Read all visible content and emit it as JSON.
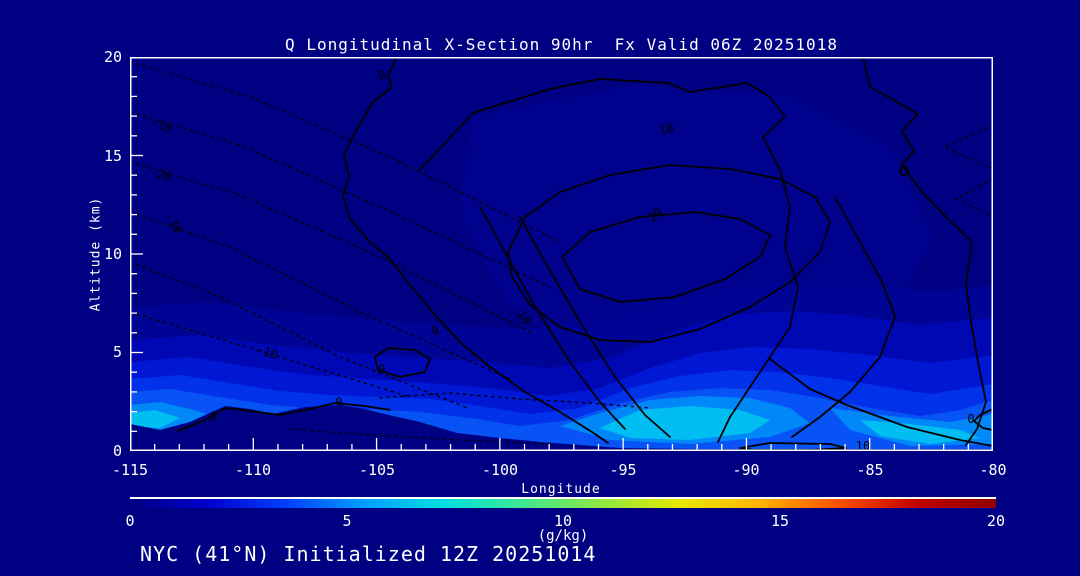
{
  "title": "Q Longitudinal X-Section 90hr  Fx Valid 06Z 20251018",
  "footer": "NYC (41°N) Initialized 12Z 20251014",
  "axes": {
    "y_label": "Altitude (km)",
    "y_ticks": [
      "20",
      "15",
      "10",
      "5",
      "0"
    ],
    "x_label": "Longitude",
    "x_ticks": [
      "-115",
      "-110",
      "-105",
      "-100",
      "-95",
      "-90",
      "-85",
      "-80"
    ]
  },
  "colorbar": {
    "ticks": [
      "0",
      "5",
      "10",
      "15",
      "20"
    ],
    "units": "(g/kg)",
    "gradient_colors": [
      "#000082",
      "#0000d0",
      "#0040ff",
      "#00a0ff",
      "#00e0e0",
      "#40e890",
      "#90e840",
      "#e8e800",
      "#ffb400",
      "#ff5000",
      "#c00000",
      "#900000"
    ]
  },
  "plot": {
    "background_color": "#000082",
    "axis_color": "#ffffff",
    "contour_color": "#000000",
    "contour_labels": [
      {
        "text": "0"
      },
      {
        "text": "10"
      },
      {
        "text": "20"
      },
      {
        "text": "10"
      },
      {
        "text": "0"
      },
      {
        "text": "0"
      },
      {
        "text": "0"
      },
      {
        "text": "0"
      },
      {
        "text": "0"
      },
      {
        "text": "10"
      },
      {
        "text": "-10"
      },
      {
        "text": "-20"
      },
      {
        "text": "-30"
      },
      {
        "text": "-10"
      }
    ]
  },
  "chart_data": {
    "type": "heatmap",
    "title": "Q Longitudinal X-Section 90hr  Fx Valid 06Z 20251018",
    "subtitle": "NYC (41°N) Initialized 12Z 20251014",
    "xlabel": "Longitude",
    "ylabel": "Altitude (km)",
    "xlim": [
      -115,
      -80
    ],
    "ylim": [
      0,
      20
    ],
    "x_ticks": [
      -115,
      -110,
      -105,
      -100,
      -95,
      -90,
      -85,
      -80
    ],
    "y_ticks": [
      0,
      5,
      10,
      15,
      20
    ],
    "grid": false,
    "fill_field": "specific humidity Q",
    "fill_units": "g/kg",
    "fill_range": [
      0,
      20
    ],
    "colorbar_ticks": [
      0,
      5,
      10,
      15,
      20
    ],
    "colorbar_position": "bottom",
    "fill_shades_visible_gkg": [
      0,
      1,
      2,
      3,
      4,
      5
    ],
    "overlay_contours": {
      "solid_levels_labeled": [
        0,
        10,
        20
      ],
      "dashed_levels_labeled": [
        -30,
        -20,
        -10
      ],
      "pattern": "nested solid contours (10, 20 + unlabeled inner max) centered near lon -95 at ~11 km altitude; dashed negative contours fan across upper-left quadrant; contours descend to the surface between lon -97 and -80"
    },
    "moisture_features": [
      {
        "desc": "brightest near-surface moist plume",
        "lon_range": [
          -97,
          -91
        ],
        "alt_km": [
          0,
          3
        ],
        "q_approx_gkg": 5
      },
      {
        "desc": "second near-surface moist maximum",
        "lon_range": [
          -86,
          -80
        ],
        "alt_km": [
          0,
          2.5
        ],
        "q_approx_gkg": 5
      },
      {
        "desc": "moist boundary layer strip at west edge",
        "lon_range": [
          -115,
          -113
        ],
        "alt_km": [
          0,
          1.5
        ],
        "q_approx_gkg": 4
      },
      {
        "desc": "dry upper troposphere above ~7 km",
        "q_approx_gkg": 0
      }
    ],
    "terrain": {
      "desc": "dark terrain silhouette west of ~lon -101",
      "peak_altitudes_km": [
        2.3,
        2.3
      ],
      "peak_longitudes": [
        -111,
        -106.5
      ]
    }
  }
}
